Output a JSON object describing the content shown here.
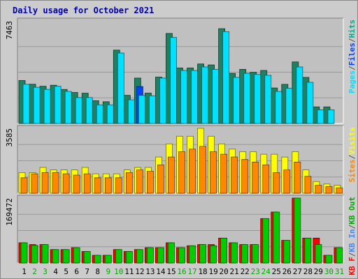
{
  "chart_data": {
    "type": "bar",
    "title": "Daily usage for October 2021",
    "categories": [
      "1",
      "2",
      "3",
      "4",
      "5",
      "6",
      "7",
      "8",
      "9",
      "10",
      "11",
      "12",
      "13",
      "14",
      "15",
      "16",
      "17",
      "18",
      "19",
      "20",
      "21",
      "22",
      "23",
      "24",
      "25",
      "26",
      "27",
      "28",
      "29",
      "30",
      "31"
    ],
    "weekend_days": [
      "2",
      "3",
      "9",
      "10",
      "16",
      "17",
      "23",
      "24",
      "30",
      "31"
    ],
    "colors": {
      "frame": "#cccccc",
      "plot_bg": "#c0c0c0",
      "grid": "#999999",
      "title": "#0000aa",
      "weekday_label": "#000000",
      "weekend_label": "#00aa00",
      "slash": "#555555"
    },
    "panels": [
      {
        "name": "hits-files-pages",
        "ymax_label": "7463",
        "ymax": 7463,
        "legend": [
          {
            "label": "Pages",
            "color": "#00e0ff"
          },
          {
            "label": "Files",
            "color": "#0044ff"
          },
          {
            "label": "Hits",
            "color": "#00aa88"
          }
        ],
        "series": [
          {
            "name": "Hits",
            "color": "#208060",
            "values": [
              3125,
              2855,
              2708,
              2781,
              2475,
              2255,
              2203,
              1656,
              1582,
              5340,
              2046,
              3303,
              2209,
              3376,
              6552,
              4039,
              4039,
              4331,
              4260,
              6898,
              3646,
              3938,
              3723,
              3859,
              2583,
              2847,
              4479,
              3353,
              1206,
              1206,
              0
            ]
          },
          {
            "name": "Files",
            "color": "#0044ff",
            "values": [
              0,
              0,
              0,
              0,
              0,
              0,
              0,
              0,
              0,
              0,
              0,
              2685,
              0,
              0,
              0,
              0,
              0,
              0,
              0,
              0,
              0,
              0,
              0,
              0,
              0,
              0,
              0,
              0,
              0,
              0,
              0
            ]
          },
          {
            "name": "Pages",
            "color": "#00e0ff",
            "values": [
              2855,
              2631,
              2481,
              2708,
              2334,
              1887,
              1887,
              1353,
              1353,
              5127,
              1725,
              2042,
              2014,
              3303,
              6264,
              3859,
              3859,
              4113,
              3930,
              6684,
              3354,
              3646,
              3573,
              3506,
              2334,
              2559,
              4113,
              2995,
              993,
              993,
              0
            ]
          }
        ]
      },
      {
        "name": "visits-sites",
        "ymax_label": "3585",
        "ymax": 3585,
        "legend": [
          {
            "label": "Sites",
            "color": "#ff8800"
          },
          {
            "label": "Visits",
            "color": "#ffff00"
          }
        ],
        "series": [
          {
            "name": "Visits",
            "color": "#ffff00",
            "values": [
              1141,
              1141,
              1426,
              1287,
              1287,
              1287,
              1426,
              1072,
              1072,
              1072,
              1287,
              1426,
              1426,
              2001,
              2726,
              3150,
              3150,
              3585,
              3150,
              2726,
              2438,
              2296,
              2296,
              2154,
              2154,
              1998,
              2296,
              1287,
              648,
              509,
              439
            ]
          },
          {
            "name": "Sites",
            "color": "#ff8800",
            "values": [
              854,
              1072,
              1141,
              1141,
              1072,
              1000,
              1072,
              854,
              854,
              854,
              1141,
              1287,
              1212,
              1566,
              2001,
              2296,
              2438,
              2589,
              2296,
              2154,
              2001,
              1862,
              1721,
              1566,
              1141,
              1287,
              1721,
              933,
              439,
              369,
              298
            ]
          }
        ]
      },
      {
        "name": "kb",
        "ymax_label": "169472",
        "ymax": 169472,
        "legend": [
          {
            "label": "KB F",
            "color": "#ff0000"
          },
          {
            "label": "KB In",
            "color": "#4488ff"
          },
          {
            "label": "KB Out",
            "color": "#00aa00"
          }
        ],
        "series": [
          {
            "name": "KB F",
            "color": "#ff0000",
            "values": [
              52790,
              48080,
              48080,
              35070,
              35070,
              40000,
              30000,
              20000,
              20000,
              35070,
              30000,
              35070,
              40000,
              40000,
              52790,
              40000,
              45000,
              48080,
              48080,
              64970,
              52790,
              48080,
              48080,
              116000,
              133000,
              59140,
              169472,
              64970,
              64970,
              20000,
              40000
            ]
          },
          {
            "name": "KB Out",
            "color": "#00cc00",
            "values": [
              52790,
              46000,
              48080,
              35070,
              35070,
              40000,
              30000,
              20000,
              20000,
              35070,
              30000,
              35070,
              40000,
              40000,
              52790,
              40000,
              45000,
              48080,
              45000,
              64970,
              52790,
              48080,
              48080,
              116000,
              133000,
              59140,
              169472,
              64970,
              48080,
              20000,
              40000
            ]
          }
        ]
      }
    ]
  }
}
